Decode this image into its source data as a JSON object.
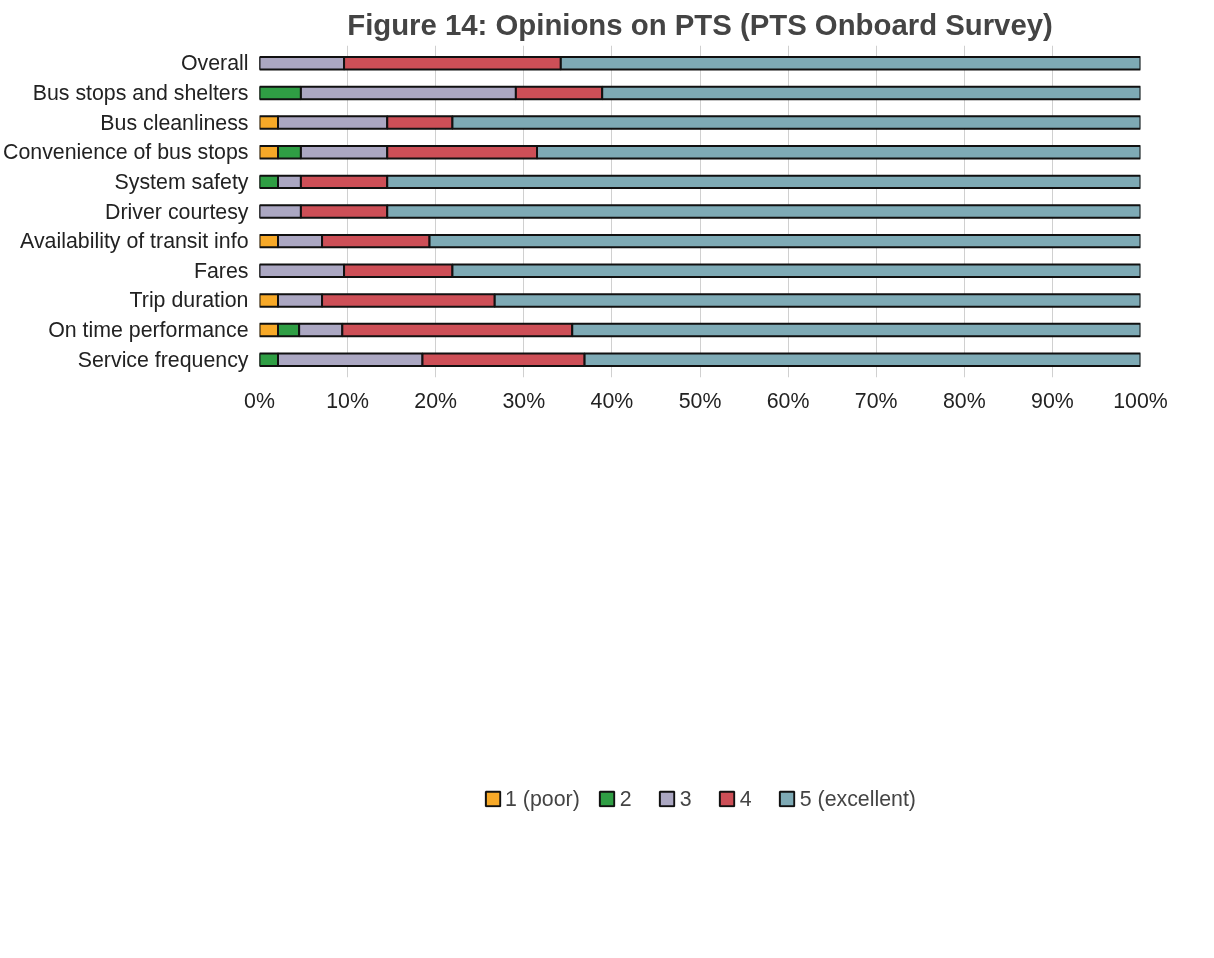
{
  "chart_data": {
    "type": "bar",
    "orientation": "horizontal",
    "stacked": true,
    "title": "Figure 14: Opinions on PTS (PTS Onboard Survey)",
    "categories": [
      "Overall",
      "Bus stops and shelters",
      "Bus cleanliness",
      "Convenience of bus stops",
      "System safety",
      "Driver courtesy",
      "Availability of transit info",
      "Fares",
      "Trip duration",
      "On time performance",
      "Service frequency"
    ],
    "series": [
      {
        "name": "1 (poor)",
        "color": "#f7a928",
        "values": [
          0,
          0,
          2.1,
          2.1,
          0,
          0,
          2.1,
          0,
          2.1,
          2.1,
          0
        ]
      },
      {
        "name": "2",
        "color": "#2f9e44",
        "values": [
          0,
          4.7,
          0,
          2.6,
          2.1,
          0,
          0,
          0,
          0,
          2.4,
          2.1
        ]
      },
      {
        "name": "3",
        "color": "#aba7c2",
        "values": [
          9.6,
          24.4,
          12.4,
          9.8,
          2.6,
          4.7,
          5.0,
          9.6,
          5.0,
          4.9,
          16.4
        ]
      },
      {
        "name": "4",
        "color": "#cd4f57",
        "values": [
          24.6,
          9.8,
          7.4,
          17.0,
          9.8,
          9.8,
          12.2,
          12.3,
          19.6,
          26.1,
          18.4
        ]
      },
      {
        "name": "5 (excellent)",
        "color": "#7eaab5",
        "values": [
          65.8,
          61.1,
          78.1,
          68.5,
          85.5,
          85.5,
          80.7,
          78.1,
          73.3,
          64.5,
          63.1
        ]
      }
    ],
    "xlim": [
      0,
      100
    ],
    "xticks": [
      {
        "value": 0,
        "label": "0%"
      },
      {
        "value": 10,
        "label": "10%"
      },
      {
        "value": 20,
        "label": "20%"
      },
      {
        "value": 30,
        "label": "30%"
      },
      {
        "value": 40,
        "label": "40%"
      },
      {
        "value": 50,
        "label": "50%"
      },
      {
        "value": 60,
        "label": "60%"
      },
      {
        "value": 70,
        "label": "70%"
      },
      {
        "value": 80,
        "label": "80%"
      },
      {
        "value": 90,
        "label": "90%"
      },
      {
        "value": 100,
        "label": "100%"
      }
    ],
    "grid": "x",
    "legend": "bottom"
  }
}
